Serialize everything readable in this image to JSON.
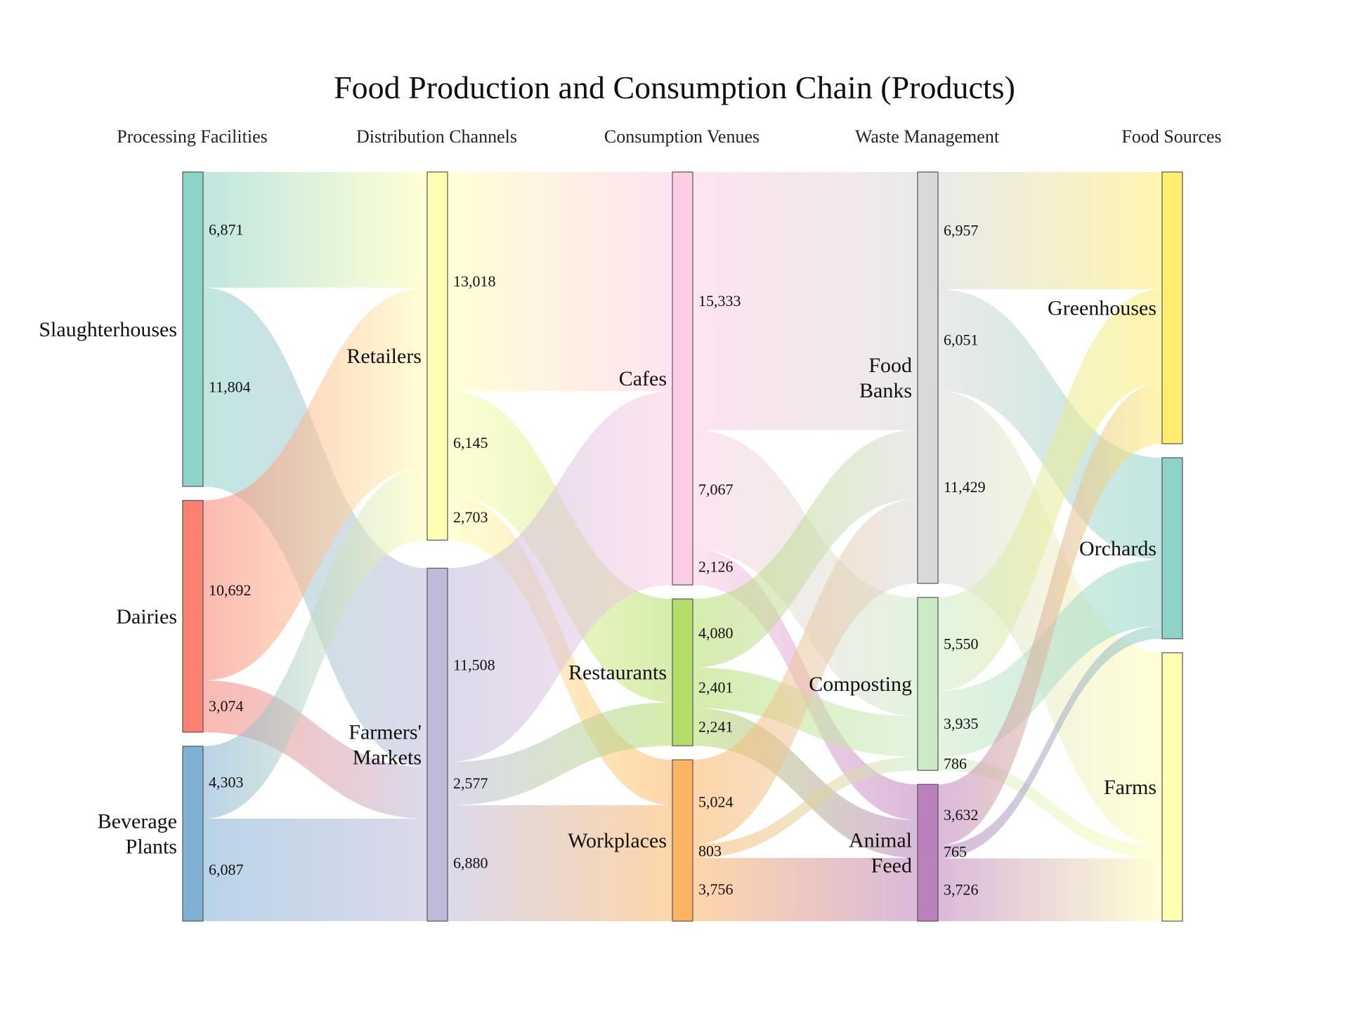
{
  "chart_data": {
    "type": "sankey",
    "title": "Food Production and Consumption Chain (Products)",
    "columns": [
      "Processing Facilities",
      "Distribution Channels",
      "Consumption Venues",
      "Waste Management",
      "Food Sources"
    ],
    "nodes": [
      {
        "id": "slaughterhouses",
        "label": "Slaughterhouses",
        "column": 0,
        "color": "#8dd3c7"
      },
      {
        "id": "dairies",
        "label": "Dairies",
        "column": 0,
        "color": "#fb8072"
      },
      {
        "id": "beverage",
        "label": "Beverage Plants",
        "column": 0,
        "color": "#80b1d3"
      },
      {
        "id": "retailers",
        "label": "Retailers",
        "column": 1,
        "color": "#ffffb3"
      },
      {
        "id": "farmers",
        "label": "Farmers' Markets",
        "column": 1,
        "color": "#bebada"
      },
      {
        "id": "cafes",
        "label": "Cafes",
        "column": 2,
        "color": "#fccde5"
      },
      {
        "id": "restaurants",
        "label": "Restaurants",
        "column": 2,
        "color": "#b3de69"
      },
      {
        "id": "workplaces",
        "label": "Workplaces",
        "column": 2,
        "color": "#fdb462"
      },
      {
        "id": "foodbanks",
        "label": "Food Banks",
        "column": 3,
        "color": "#d9d9d9"
      },
      {
        "id": "composting",
        "label": "Composting",
        "column": 3,
        "color": "#ccebc5"
      },
      {
        "id": "animalfeed",
        "label": "Animal Feed",
        "column": 3,
        "color": "#bc80bd"
      },
      {
        "id": "greenhouses",
        "label": "Greenhouses",
        "column": 4,
        "color": "#ffed6f"
      },
      {
        "id": "orchards",
        "label": "Orchards",
        "column": 4,
        "color": "#8dd3c7"
      },
      {
        "id": "farms",
        "label": "Farms",
        "column": 4,
        "color": "#ffffb3"
      }
    ],
    "links": [
      {
        "source": "slaughterhouses",
        "target": "retailers",
        "value": 6871
      },
      {
        "source": "slaughterhouses",
        "target": "farmers",
        "value": 11804
      },
      {
        "source": "dairies",
        "target": "retailers",
        "value": 10692
      },
      {
        "source": "dairies",
        "target": "farmers",
        "value": 3074
      },
      {
        "source": "beverage",
        "target": "retailers",
        "value": 4303
      },
      {
        "source": "beverage",
        "target": "farmers",
        "value": 6087
      },
      {
        "source": "retailers",
        "target": "cafes",
        "value": 13018
      },
      {
        "source": "retailers",
        "target": "restaurants",
        "value": 6145
      },
      {
        "source": "retailers",
        "target": "workplaces",
        "value": 2703
      },
      {
        "source": "farmers",
        "target": "cafes",
        "value": 11508
      },
      {
        "source": "farmers",
        "target": "restaurants",
        "value": 2577
      },
      {
        "source": "farmers",
        "target": "workplaces",
        "value": 6880
      },
      {
        "source": "cafes",
        "target": "foodbanks",
        "value": 15333
      },
      {
        "source": "cafes",
        "target": "composting",
        "value": 7067
      },
      {
        "source": "cafes",
        "target": "animalfeed",
        "value": 2126
      },
      {
        "source": "restaurants",
        "target": "foodbanks",
        "value": 4080
      },
      {
        "source": "restaurants",
        "target": "composting",
        "value": 2401
      },
      {
        "source": "restaurants",
        "target": "animalfeed",
        "value": 2241
      },
      {
        "source": "workplaces",
        "target": "foodbanks",
        "value": 5024
      },
      {
        "source": "workplaces",
        "target": "composting",
        "value": 803
      },
      {
        "source": "workplaces",
        "target": "animalfeed",
        "value": 3756
      },
      {
        "source": "foodbanks",
        "target": "greenhouses",
        "value": 6957
      },
      {
        "source": "foodbanks",
        "target": "orchards",
        "value": 6051
      },
      {
        "source": "foodbanks",
        "target": "farms",
        "value": 11429
      },
      {
        "source": "composting",
        "target": "greenhouses",
        "value": 5550
      },
      {
        "source": "composting",
        "target": "orchards",
        "value": 3935
      },
      {
        "source": "composting",
        "target": "farms",
        "value": 786
      },
      {
        "source": "animalfeed",
        "target": "greenhouses",
        "value": 3632
      },
      {
        "source": "animalfeed",
        "target": "orchards",
        "value": 765
      },
      {
        "source": "animalfeed",
        "target": "farms",
        "value": 3726
      }
    ]
  }
}
